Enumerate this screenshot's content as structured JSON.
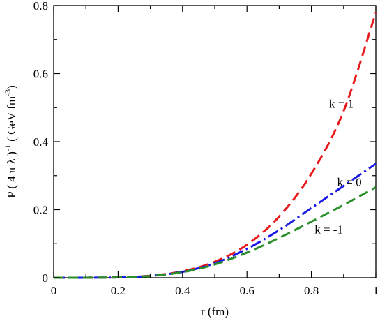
{
  "chart_data": {
    "type": "line",
    "xlabel": "r (fm)",
    "ylabel_parts": {
      "prefix": "P ( 4 π λ )",
      "exp1": "-1",
      "middle": " ( GeV fm",
      "exp2": "-3",
      "suffix": ")"
    },
    "xlim": [
      0,
      1
    ],
    "ylim": [
      0,
      0.8
    ],
    "x_ticks": [
      0,
      0.2,
      0.4,
      0.6,
      0.8,
      1
    ],
    "x_tick_labels": [
      "0",
      "0.2",
      "0.4",
      "0.6",
      "0.8",
      "1"
    ],
    "y_ticks": [
      0,
      0.2,
      0.4,
      0.6,
      0.8
    ],
    "y_tick_labels": [
      "0",
      "0.2",
      "0.4",
      "0.6",
      "0.8"
    ],
    "grid": false,
    "series": [
      {
        "label": "k = 1",
        "color": "#e8191b",
        "dash": "dashed",
        "x": [
          0,
          0.1,
          0.2,
          0.3,
          0.4,
          0.5,
          0.6,
          0.7,
          0.8,
          0.9,
          1.0
        ],
        "y": [
          0,
          0.0001,
          0.0012,
          0.006,
          0.019,
          0.047,
          0.097,
          0.18,
          0.306,
          0.49,
          0.78
        ]
      },
      {
        "label": "k = 0",
        "color": "#1a1ae6",
        "dash": "dashdot",
        "x": [
          0,
          0.1,
          0.2,
          0.3,
          0.4,
          0.5,
          0.6,
          0.7,
          0.8,
          0.9,
          1.0
        ],
        "y": [
          0,
          0.0001,
          0.0011,
          0.0055,
          0.0175,
          0.0425,
          0.085,
          0.14,
          0.205,
          0.27,
          0.335
        ]
      },
      {
        "label": "k = -1",
        "color": "#2a8f2a",
        "dash": "dashed",
        "x": [
          0,
          0.1,
          0.2,
          0.3,
          0.4,
          0.5,
          0.6,
          0.7,
          0.8,
          0.9,
          1.0
        ],
        "y": [
          0,
          0.0001,
          0.001,
          0.0052,
          0.0165,
          0.039,
          0.074,
          0.117,
          0.165,
          0.214,
          0.266
        ]
      }
    ],
    "annotations": [
      {
        "text": "k = 1",
        "x": 0.855,
        "y": 0.5
      },
      {
        "text": "k = 0",
        "x": 0.88,
        "y": 0.27
      },
      {
        "text": "k = -1",
        "x": 0.81,
        "y": 0.13
      }
    ]
  }
}
